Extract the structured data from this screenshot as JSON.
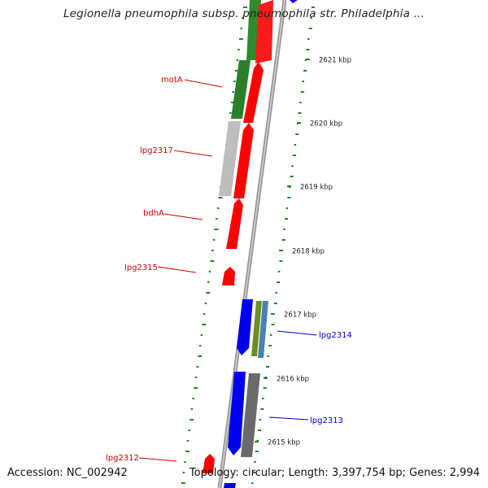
{
  "title": "Legionella pneumophila subsp. pneumophila str. Philadelphia ...",
  "footer": {
    "accession": "Accession: NC_002942",
    "summary": "Topology: circular; Length: 3,397,754 bp; Genes: 2,994"
  },
  "ticks": [
    {
      "id": "2621",
      "label": "2621 kbp"
    },
    {
      "id": "2620",
      "label": "2620 kbp"
    },
    {
      "id": "2619",
      "label": "2619 kbp"
    },
    {
      "id": "2618",
      "label": "2618 kbp"
    },
    {
      "id": "2617",
      "label": "2617 kbp"
    },
    {
      "id": "2616",
      "label": "2616 kbp"
    },
    {
      "id": "2615",
      "label": "2615 kbp"
    }
  ],
  "gene_labels": [
    {
      "id": "motA",
      "text": "motA",
      "color": "#cc0000"
    },
    {
      "id": "lpg2317",
      "text": "lpg2317",
      "color": "#cc0000"
    },
    {
      "id": "bdhA",
      "text": "bdhA",
      "color": "#cc0000"
    },
    {
      "id": "lpg2315",
      "text": "lpg2315",
      "color": "#cc0000"
    },
    {
      "id": "lpg2314",
      "text": "lpg2314",
      "color": "#0000cc"
    },
    {
      "id": "lpg2313",
      "text": "lpg2313",
      "color": "#0000cc"
    },
    {
      "id": "lpg2312",
      "text": "lpg2312",
      "color": "#cc0000"
    }
  ],
  "colors": {
    "forward_strand": "#ff0000",
    "reverse_strand": "#0000ff",
    "green_feature": "#2a8a2a",
    "grey_feature": "#bbbbbb",
    "dark_grey_feature": "#666666",
    "olive_feature": "#6b8e23",
    "steel_feature": "#4682b4",
    "backbone": "#888888",
    "gc_marks": "#1a8a1a"
  }
}
